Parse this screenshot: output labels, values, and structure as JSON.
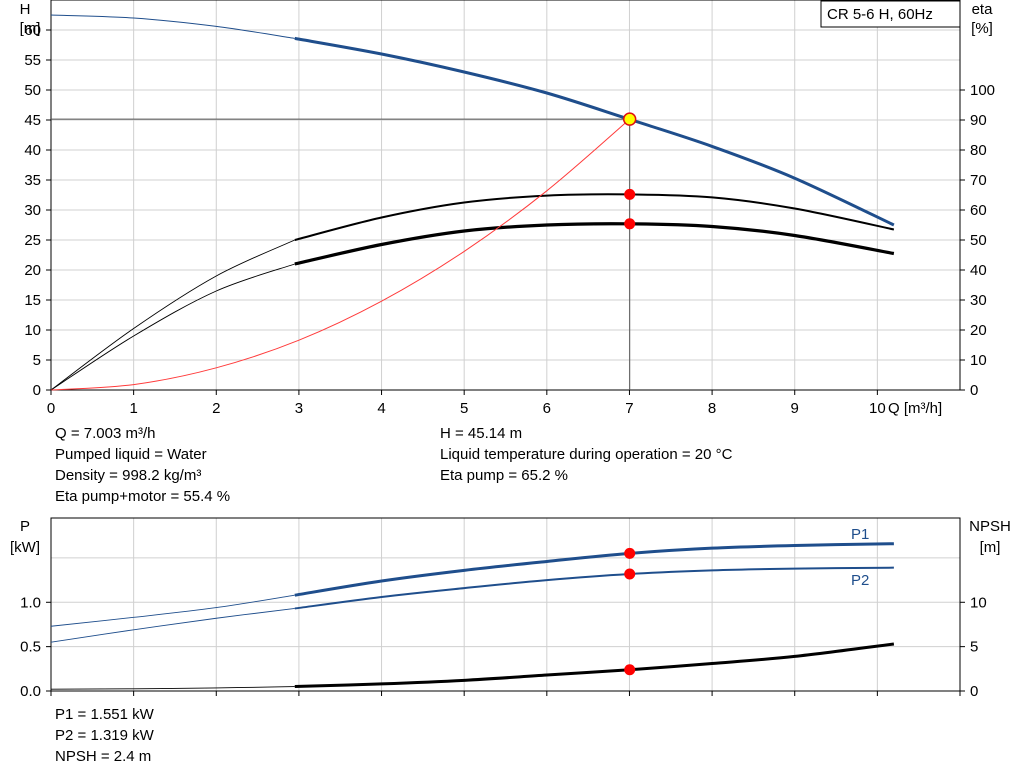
{
  "title": "CR 5-6 H, 60Hz",
  "colors": {
    "head": "#1f4e8c",
    "eta": "#ff3b3b",
    "power": "#1f4e8c",
    "npsh": "#000000",
    "marker": "#ff0000",
    "duty_fill": "#ffff00",
    "grid": "#d0d0d0"
  },
  "info_top": {
    "left": [
      "Q = 7.003 m³/h",
      "Pumped liquid = Water",
      "Density = 998.2 kg/m³",
      "Eta pump+motor = 55.4 %"
    ],
    "right": [
      "H = 45.14 m",
      "Liquid temperature during operation = 20 °C",
      "Eta pump = 65.2 %"
    ]
  },
  "info_bottom": [
    "P1 = 1.551 kW",
    "P2 = 1.319 kW",
    "NPSH = 2.4 m"
  ],
  "chart_data": [
    {
      "type": "line",
      "name": "head-efficiency",
      "xlabel": "Q [m³/h]",
      "ylabel_left": [
        "H",
        "[m]"
      ],
      "ylabel_right": [
        "eta",
        "[%]"
      ],
      "xlim": [
        0,
        11
      ],
      "ylim_left": [
        0,
        65
      ],
      "ylim_right": [
        0,
        130
      ],
      "x_ticks": [
        0,
        1,
        2,
        3,
        4,
        5,
        6,
        7,
        8,
        9,
        10
      ],
      "y_ticks_left": [
        0,
        5,
        10,
        15,
        20,
        25,
        30,
        35,
        40,
        45,
        50,
        55,
        60
      ],
      "y_ticks_right": [
        0,
        10,
        20,
        30,
        40,
        50,
        60,
        70,
        80,
        90,
        100
      ],
      "grid": true,
      "operating_range": [
        2.95,
        10.2
      ],
      "duty_point": {
        "x": 7.003,
        "y": 45.14
      },
      "series": [
        {
          "key": "head",
          "axis": "left",
          "color": "#1f4e8c",
          "x": [
            0,
            1,
            2,
            2.95,
            4,
            5,
            6,
            7.003,
            8,
            9,
            10.2
          ],
          "y": [
            62.5,
            62.0,
            60.6,
            58.6,
            56.0,
            53.0,
            49.5,
            45.1,
            40.6,
            35.3,
            27.5
          ]
        },
        {
          "key": "eta-pump",
          "axis": "right",
          "color": "#000000",
          "x": [
            0,
            1,
            2,
            2.95,
            4,
            5,
            6,
            7,
            8,
            9,
            10.2
          ],
          "y": [
            0,
            20.5,
            38.0,
            50.0,
            57.5,
            62.5,
            64.8,
            65.2,
            64.2,
            60.5,
            53.5
          ]
        },
        {
          "key": "eta-total",
          "axis": "right",
          "color": "#000000",
          "x": [
            0,
            1,
            2,
            2.95,
            4,
            5,
            6,
            7,
            8,
            9,
            10.2
          ],
          "y": [
            0,
            18.0,
            33.0,
            42.0,
            48.5,
            53.0,
            55.0,
            55.4,
            54.5,
            51.5,
            45.5
          ]
        },
        {
          "key": "eta-system",
          "axis": "left",
          "color": "#ff3b3b",
          "x": [
            0,
            1,
            2,
            3,
            4,
            5,
            6,
            7.003
          ],
          "y": [
            0,
            0.9,
            3.7,
            8.3,
            14.8,
            23.1,
            33.2,
            45.14
          ]
        }
      ],
      "markers": [
        {
          "x": 7.003,
          "y": 65.2,
          "axis": "right"
        },
        {
          "x": 7.003,
          "y": 55.4,
          "axis": "right"
        }
      ]
    },
    {
      "type": "line",
      "name": "power-npsh",
      "ylabel_left": [
        "P",
        "[kW]"
      ],
      "ylabel_right": [
        "NPSH",
        "[m]"
      ],
      "xlim": [
        0,
        11
      ],
      "ylim_left": [
        0,
        1.95
      ],
      "ylim_right": [
        0,
        19.5
      ],
      "y_ticks_left": [
        {
          "v": 0.0,
          "label": "0.0"
        },
        {
          "v": 0.5,
          "label": "0.5"
        },
        {
          "v": 1.0,
          "label": "1.0"
        }
      ],
      "y_ticks_right": [
        0,
        5,
        10
      ],
      "grid": true,
      "operating_range": [
        2.95,
        10.2
      ],
      "series": [
        {
          "key": "P1",
          "label": "P1",
          "axis": "left",
          "color": "#1f4e8c",
          "x": [
            0,
            1,
            2,
            2.95,
            4,
            5,
            6,
            7.003,
            8,
            9,
            10.2
          ],
          "y": [
            0.73,
            0.83,
            0.94,
            1.08,
            1.24,
            1.36,
            1.46,
            1.551,
            1.61,
            1.64,
            1.66
          ]
        },
        {
          "key": "P2",
          "label": "P2",
          "axis": "left",
          "color": "#1f4e8c",
          "x": [
            0,
            1,
            2,
            2.95,
            4,
            5,
            6,
            7.003,
            8,
            9,
            10.2
          ],
          "y": [
            0.55,
            0.69,
            0.82,
            0.93,
            1.06,
            1.16,
            1.25,
            1.319,
            1.36,
            1.38,
            1.39
          ]
        },
        {
          "key": "NPSH",
          "axis": "right",
          "color": "#000000",
          "x": [
            0,
            1,
            2,
            2.95,
            4,
            5,
            6,
            7.003,
            8,
            9,
            10.2
          ],
          "y": [
            0.2,
            0.25,
            0.35,
            0.5,
            0.8,
            1.2,
            1.8,
            2.4,
            3.1,
            3.9,
            5.3
          ]
        }
      ],
      "markers": [
        {
          "x": 7.003,
          "y": 1.551,
          "axis": "left"
        },
        {
          "x": 7.003,
          "y": 1.319,
          "axis": "left"
        },
        {
          "x": 7.003,
          "y": 2.4,
          "axis": "right"
        }
      ]
    }
  ]
}
